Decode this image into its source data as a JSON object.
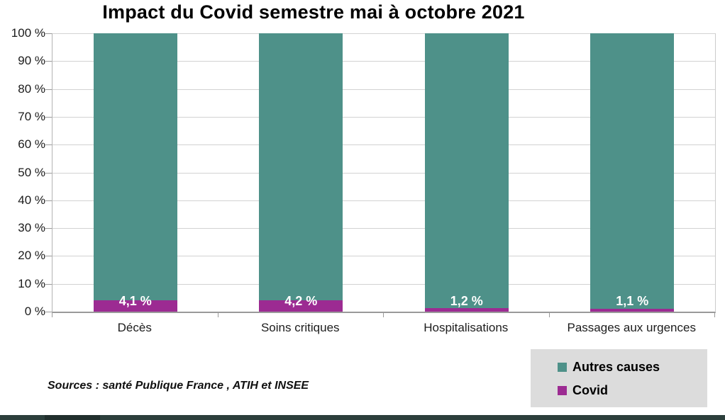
{
  "title": "Impact du Covid semestre mai à octobre 2021",
  "source_note": "Sources : santé Publique France , ATIH et INSEE",
  "colors": {
    "autres_causes": "#4e9189",
    "covid": "#9c2b92",
    "legend_bg": "#dcdcdc",
    "gridline": "#d2d2d2",
    "axis": "#9a9a9a",
    "bottom_bar": "#2c3f3c",
    "bar_label_text": "#ffffff"
  },
  "legend": {
    "items": [
      {
        "label": "Autres causes",
        "color": "#4e9189"
      },
      {
        "label": "Covid",
        "color": "#9c2b92"
      }
    ]
  },
  "chart_data": {
    "type": "bar",
    "stacked": true,
    "title": "Impact du Covid semestre mai à octobre 2021",
    "categories": [
      "Décès",
      "Soins critiques",
      "Hospitalisations",
      "Passages aux urgences"
    ],
    "series": [
      {
        "name": "Covid",
        "values": [
          4.1,
          4.2,
          1.2,
          1.1
        ],
        "color": "#9c2b92"
      },
      {
        "name": "Autres causes",
        "values": [
          95.9,
          95.8,
          98.8,
          98.9
        ],
        "color": "#4e9189"
      }
    ],
    "bar_labels": [
      "4,1 %",
      "4,2 %",
      "1,2 %",
      "1,1 %"
    ],
    "xlabel": "",
    "ylabel": "",
    "ylim": [
      0,
      100
    ],
    "y_tick_step": 10,
    "y_tick_labels": [
      "0 %",
      "10 %",
      "20 %",
      "30 %",
      "40 %",
      "50 %",
      "60 %",
      "70 %",
      "80 %",
      "90 %",
      "100 %"
    ],
    "grid": true,
    "legend_position": "bottom-right"
  }
}
